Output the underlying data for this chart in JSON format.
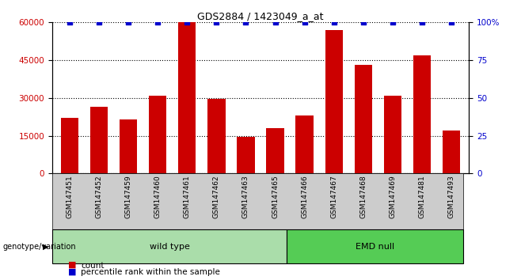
{
  "title": "GDS2884 / 1423049_a_at",
  "samples": [
    "GSM147451",
    "GSM147452",
    "GSM147459",
    "GSM147460",
    "GSM147461",
    "GSM147462",
    "GSM147463",
    "GSM147465",
    "GSM147466",
    "GSM147467",
    "GSM147468",
    "GSM147469",
    "GSM147481",
    "GSM147493"
  ],
  "counts": [
    22000,
    26500,
    21500,
    31000,
    60000,
    29500,
    14500,
    18000,
    23000,
    57000,
    43000,
    31000,
    47000,
    17000
  ],
  "percentile": [
    100,
    100,
    100,
    100,
    100,
    100,
    100,
    100,
    100,
    100,
    100,
    100,
    100,
    100
  ],
  "wild_type_count": 8,
  "emd_null_count": 6,
  "bar_color": "#cc0000",
  "dot_color": "#0000cc",
  "wild_type_color": "#aaddaa",
  "emd_null_color": "#55cc55",
  "gray_color": "#cccccc",
  "ylim_left": [
    0,
    60000
  ],
  "ylim_right": [
    0,
    100
  ],
  "yticks_left": [
    0,
    15000,
    30000,
    45000,
    60000
  ],
  "ytick_labels_left": [
    "0",
    "15000",
    "30000",
    "45000",
    "60000"
  ],
  "yticks_right": [
    0,
    25,
    50,
    75,
    100
  ],
  "ytick_labels_right": [
    "0",
    "25",
    "50",
    "75",
    "100%"
  ]
}
